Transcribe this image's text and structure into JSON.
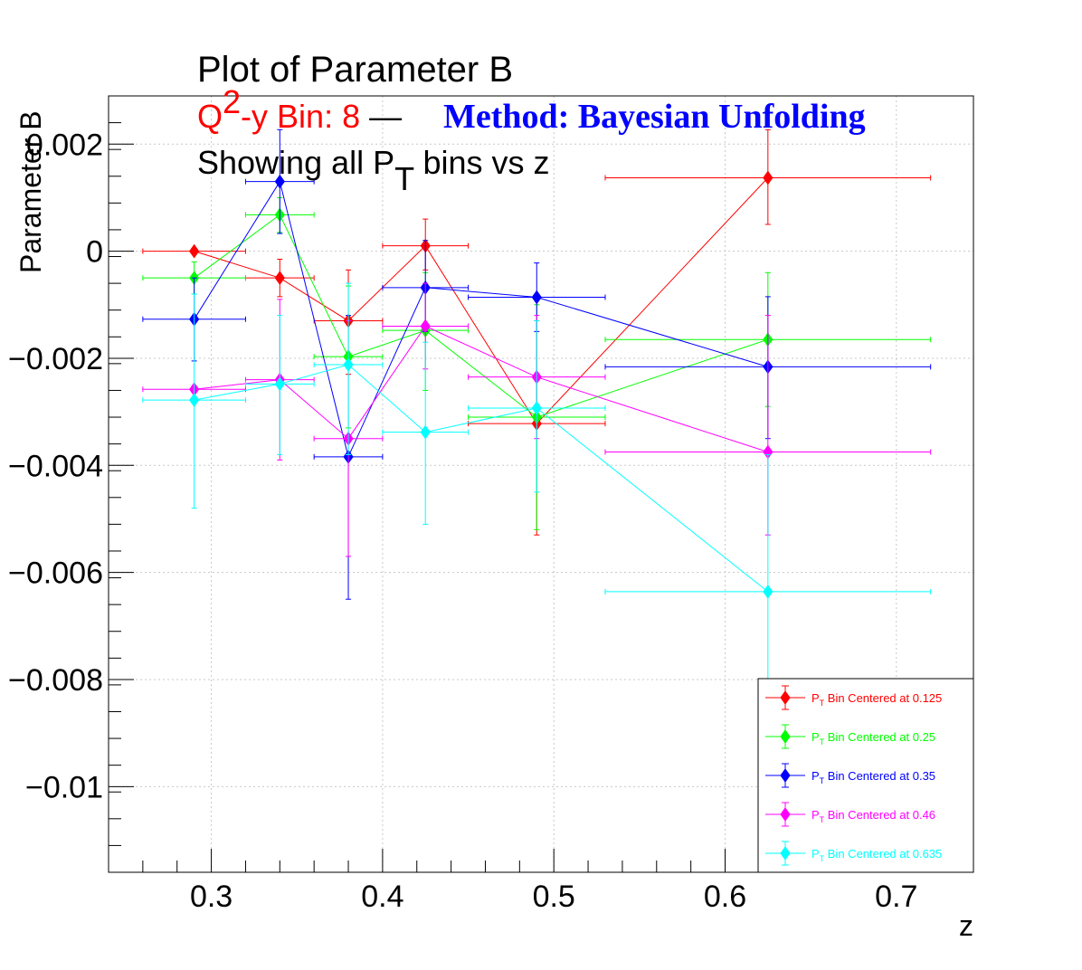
{
  "title": "Plot of Parameter B",
  "subtitle": {
    "q2_prefix": "Q",
    "q2_sup": "2",
    "q2_rest": "-y Bin: 8",
    "dash": " — ",
    "method": "Method: Bayesian Unfolding",
    "line3_a": "Showing all P",
    "line3_sub": "T",
    "line3_b": " bins vs z"
  },
  "colors": {
    "q2": "#ff0000",
    "method": "#0000ff",
    "text": "#000000",
    "grid": "#c8c8c8"
  },
  "chart_data": {
    "type": "scatter",
    "xlabel": "z",
    "ylabel": "Parameter B",
    "xlim": [
      0.24,
      0.745
    ],
    "ylim": [
      -0.0116,
      0.0029
    ],
    "grid": true,
    "legend_position": "bottom-right",
    "x_ticks": [
      {
        "v": 0.3,
        "label": "0.3"
      },
      {
        "v": 0.4,
        "label": "0.4"
      },
      {
        "v": 0.5,
        "label": "0.5"
      },
      {
        "v": 0.6,
        "label": "0.6"
      },
      {
        "v": 0.7,
        "label": "0.7"
      }
    ],
    "y_ticks": [
      {
        "v": 0.002,
        "label": "0.002"
      },
      {
        "v": 0,
        "label": "0"
      },
      {
        "v": -0.002,
        "label": "−0.002"
      },
      {
        "v": -0.004,
        "label": "−0.004"
      },
      {
        "v": -0.006,
        "label": "−0.006"
      },
      {
        "v": -0.008,
        "label": "−0.008"
      },
      {
        "v": -0.01,
        "label": "−0.01"
      }
    ],
    "series": [
      {
        "name": "Bin Centered at 0.125",
        "legend_prefix": "P",
        "legend_sub": "T",
        "color": "#ff0000",
        "points": [
          {
            "x": 0.29,
            "xlo": 0.26,
            "xhi": 0.32,
            "y": 0.0,
            "ylo": 0.0,
            "yhi": 0.0
          },
          {
            "x": 0.34,
            "xlo": 0.32,
            "xhi": 0.36,
            "y": -0.0005,
            "ylo": -0.00085,
            "yhi": -0.00015
          },
          {
            "x": 0.38,
            "xlo": 0.36,
            "xhi": 0.4,
            "y": -0.0013,
            "ylo": -0.0023,
            "yhi": -0.00035
          },
          {
            "x": 0.425,
            "xlo": 0.4,
            "xhi": 0.45,
            "y": 0.0001,
            "ylo": -0.00035,
            "yhi": 0.0006
          },
          {
            "x": 0.49,
            "xlo": 0.45,
            "xhi": 0.53,
            "y": -0.00322,
            "ylo": -0.0053,
            "yhi": -0.0013
          },
          {
            "x": 0.625,
            "xlo": 0.53,
            "xhi": 0.72,
            "y": 0.00137,
            "ylo": 0.0005,
            "yhi": 0.00227
          }
        ]
      },
      {
        "name": "Bin Centered at 0.25",
        "legend_prefix": "P",
        "legend_sub": "T",
        "color": "#00ff00",
        "points": [
          {
            "x": 0.29,
            "xlo": 0.26,
            "xhi": 0.32,
            "y": -0.0005,
            "ylo": -0.0008,
            "yhi": -0.0002
          },
          {
            "x": 0.34,
            "xlo": 0.32,
            "xhi": 0.36,
            "y": 0.00068,
            "ylo": 0.00035,
            "yhi": 0.001
          },
          {
            "x": 0.38,
            "xlo": 0.36,
            "xhi": 0.4,
            "y": -0.00197,
            "ylo": -0.0033,
            "yhi": -0.00065
          },
          {
            "x": 0.425,
            "xlo": 0.4,
            "xhi": 0.45,
            "y": -0.00148,
            "ylo": -0.0026,
            "yhi": -0.0004
          },
          {
            "x": 0.49,
            "xlo": 0.45,
            "xhi": 0.53,
            "y": -0.0031,
            "ylo": -0.0052,
            "yhi": -0.001
          },
          {
            "x": 0.625,
            "xlo": 0.53,
            "xhi": 0.72,
            "y": -0.00165,
            "ylo": -0.0029,
            "yhi": -0.0004
          }
        ]
      },
      {
        "name": "Bin Centered at 0.35",
        "legend_prefix": "P",
        "legend_sub": "T",
        "color": "#0000ff",
        "points": [
          {
            "x": 0.29,
            "xlo": 0.26,
            "xhi": 0.32,
            "y": -0.00127,
            "ylo": -0.00205,
            "yhi": -0.0005
          },
          {
            "x": 0.34,
            "xlo": 0.32,
            "xhi": 0.36,
            "y": 0.0013,
            "ylo": 0.00033,
            "yhi": 0.00227
          },
          {
            "x": 0.38,
            "xlo": 0.36,
            "xhi": 0.4,
            "y": -0.00384,
            "ylo": -0.0065,
            "yhi": -0.0012
          },
          {
            "x": 0.425,
            "xlo": 0.4,
            "xhi": 0.45,
            "y": -0.00068,
            "ylo": -0.0015,
            "yhi": 0.0002
          },
          {
            "x": 0.49,
            "xlo": 0.45,
            "xhi": 0.53,
            "y": -0.00086,
            "ylo": -0.0015,
            "yhi": -0.00022
          },
          {
            "x": 0.625,
            "xlo": 0.53,
            "xhi": 0.72,
            "y": -0.00216,
            "ylo": -0.0035,
            "yhi": -0.00085
          }
        ]
      },
      {
        "name": "Bin Centered at 0.46",
        "legend_prefix": "P",
        "legend_sub": "T",
        "color": "#ff00ff",
        "points": [
          {
            "x": 0.29,
            "xlo": 0.26,
            "xhi": 0.32,
            "y": -0.00258,
            "ylo": -0.0026,
            "yhi": -0.00256
          },
          {
            "x": 0.34,
            "xlo": 0.32,
            "xhi": 0.36,
            "y": -0.0024,
            "ylo": -0.0039,
            "yhi": -0.0009
          },
          {
            "x": 0.38,
            "xlo": 0.36,
            "xhi": 0.4,
            "y": -0.0035,
            "ylo": -0.0057,
            "yhi": -0.0013
          },
          {
            "x": 0.425,
            "xlo": 0.4,
            "xhi": 0.45,
            "y": -0.0014,
            "ylo": -0.0022,
            "yhi": -0.0006
          },
          {
            "x": 0.49,
            "xlo": 0.45,
            "xhi": 0.53,
            "y": -0.00235,
            "ylo": -0.0035,
            "yhi": -0.0012
          },
          {
            "x": 0.625,
            "xlo": 0.53,
            "xhi": 0.72,
            "y": -0.00375,
            "ylo": -0.0053,
            "yhi": -0.0012
          }
        ]
      },
      {
        "name": "Bin Centered at 0.635",
        "legend_prefix": "P",
        "legend_sub": "T",
        "color": "#00ffff",
        "points": [
          {
            "x": 0.29,
            "xlo": 0.26,
            "xhi": 0.32,
            "y": -0.00278,
            "ylo": -0.0048,
            "yhi": -0.0008
          },
          {
            "x": 0.34,
            "xlo": 0.32,
            "xhi": 0.36,
            "y": -0.00248,
            "ylo": -0.0038,
            "yhi": -0.0012
          },
          {
            "x": 0.38,
            "xlo": 0.36,
            "xhi": 0.4,
            "y": -0.00212,
            "ylo": -0.0038,
            "yhi": -0.0006
          },
          {
            "x": 0.425,
            "xlo": 0.4,
            "xhi": 0.45,
            "y": -0.00338,
            "ylo": -0.0051,
            "yhi": -0.0017
          },
          {
            "x": 0.49,
            "xlo": 0.45,
            "xhi": 0.53,
            "y": -0.00293,
            "ylo": -0.0045,
            "yhi": -0.0013
          },
          {
            "x": 0.625,
            "xlo": 0.53,
            "xhi": 0.72,
            "y": -0.00636,
            "ylo": -0.0089,
            "yhi": -0.0038
          }
        ]
      }
    ]
  }
}
